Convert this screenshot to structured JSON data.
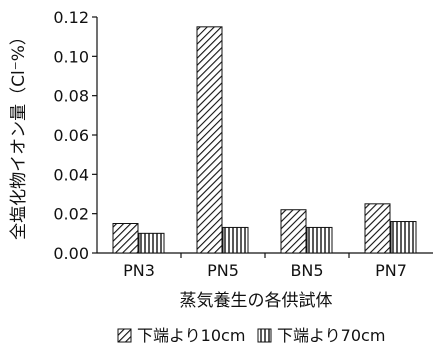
{
  "chart_data": {
    "type": "bar",
    "categories": [
      "PN3",
      "PN5",
      "BN5",
      "PN7"
    ],
    "series": [
      {
        "name": "下端より10cm",
        "values": [
          0.015,
          0.115,
          0.022,
          0.025
        ],
        "pattern": "diagonal"
      },
      {
        "name": "下端より70cm",
        "values": [
          0.01,
          0.013,
          0.013,
          0.016
        ],
        "pattern": "vertical"
      }
    ],
    "y_ticks": [
      "0.00",
      "0.02",
      "0.04",
      "0.06",
      "0.08",
      "0.10",
      "0.12"
    ],
    "ylim": [
      0,
      0.12
    ],
    "xlabel": "蒸気養生の各供試体",
    "ylabel": "全塩化物イオン量（Cl⁻%）",
    "grid": false,
    "legend_position": "bottom"
  }
}
